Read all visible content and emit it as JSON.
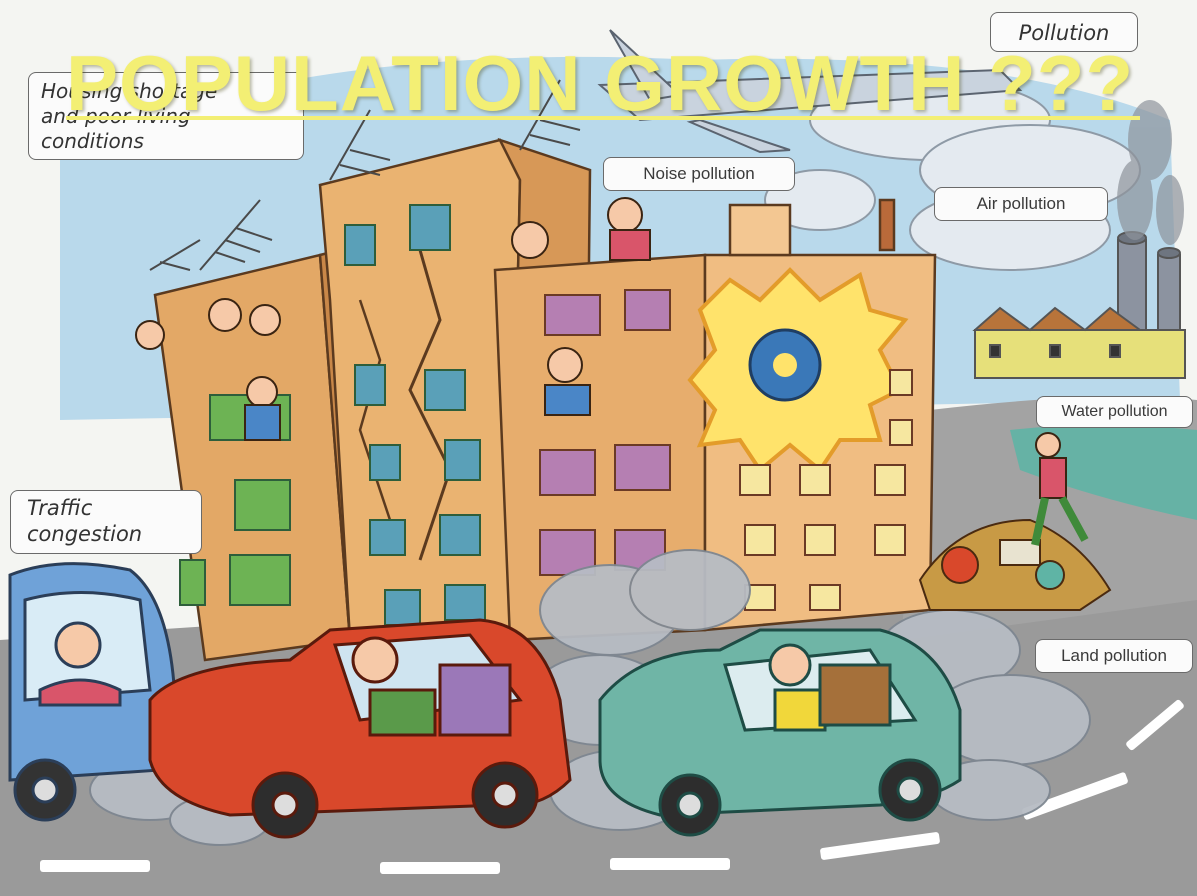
{
  "slide": {
    "title": "POPULATION GROWTH ???"
  },
  "labels": {
    "housing": [
      "Housing shortage",
      "and poor living",
      "conditions"
    ],
    "pollution": "Pollution",
    "noise_pollution": "Noise pollution",
    "air_pollution": "Air pollution",
    "water_pollution": "Water pollution",
    "traffic_congestion": [
      "Traffic",
      "congestion"
    ],
    "land_pollution": "Land pollution"
  },
  "colors": {
    "title_yellow": "#f3ef74",
    "sky_blue": "#aed3ea",
    "building_orange": "#e3a866",
    "road_grey": "#9a9a9a",
    "car_red": "#d9482b",
    "car_teal": "#6fb5a6",
    "car_blue": "#6fa2d8",
    "smoke_grey": "#b7bcc4"
  }
}
